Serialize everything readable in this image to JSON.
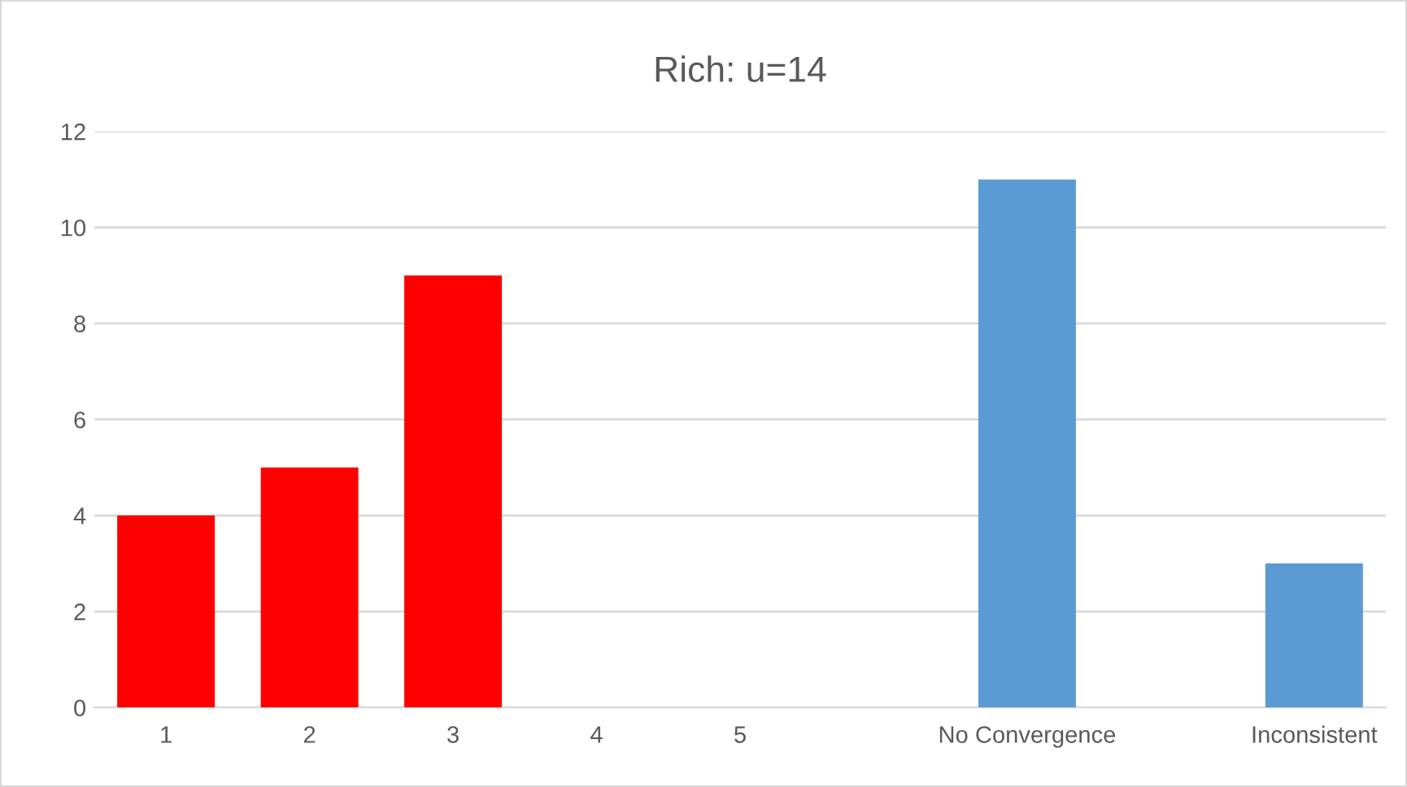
{
  "chart_data": {
    "type": "bar",
    "title": "Rich: u=14",
    "categories": [
      "1",
      "2",
      "3",
      "4",
      "5",
      null,
      "No Convergence",
      null,
      "Inconsistent"
    ],
    "values": [
      4,
      5,
      9,
      null,
      null,
      null,
      11,
      null,
      3
    ],
    "colors": [
      "#ff0000",
      "#ff0000",
      "#ff0000",
      "#ff0000",
      "#ff0000",
      "#5b9bd5",
      "#5b9bd5",
      "#5b9bd5",
      "#5b9bd5"
    ],
    "ylim": [
      0,
      12
    ],
    "yticks": [
      0,
      2,
      4,
      6,
      8,
      10,
      12
    ],
    "grid": "y",
    "legend": false
  }
}
